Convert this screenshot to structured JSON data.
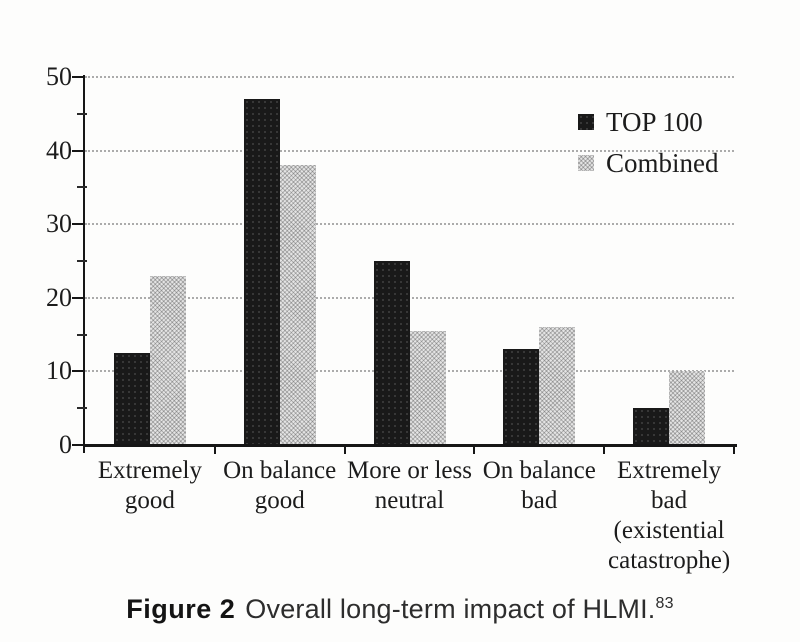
{
  "figure": {
    "caption": {
      "label": "Figure 2",
      "text": "Overall long-term impact of HLMI.",
      "footnote_ref": "83"
    }
  },
  "chart_data": {
    "type": "bar",
    "title": "",
    "xlabel": "",
    "ylabel": "",
    "categories": [
      "Extremely good",
      "On balance good",
      "More or less neutral",
      "On balance bad",
      "Extremely bad (existential catastrophe)"
    ],
    "category_lines": [
      [
        "Extremely",
        "good"
      ],
      [
        "On balance",
        "good"
      ],
      [
        "More or less",
        "neutral"
      ],
      [
        "On balance",
        "bad"
      ],
      [
        "Extremely",
        "bad",
        "(existential",
        "catastrophe)"
      ]
    ],
    "series": [
      {
        "name": "TOP 100",
        "values": [
          12.5,
          47,
          25,
          13,
          5
        ],
        "color": "#191919",
        "pattern": "solid-black-speckled"
      },
      {
        "name": "Combined",
        "values": [
          23,
          38,
          15.5,
          16,
          10
        ],
        "color": "#d6d6d6",
        "pattern": "gray-halftone-crosshatch"
      }
    ],
    "ylim": [
      0,
      50
    ],
    "yticks": [
      0,
      10,
      20,
      30,
      40,
      50
    ],
    "minor_yticks": [
      5,
      15,
      25,
      35,
      45
    ],
    "grid": "horizontal-dotted",
    "legend_position": "upper-right",
    "colors": {
      "axis": "#161616",
      "gridline": "#ababab",
      "text": "#1c1c1c",
      "paper": "#fdfdfc"
    }
  }
}
